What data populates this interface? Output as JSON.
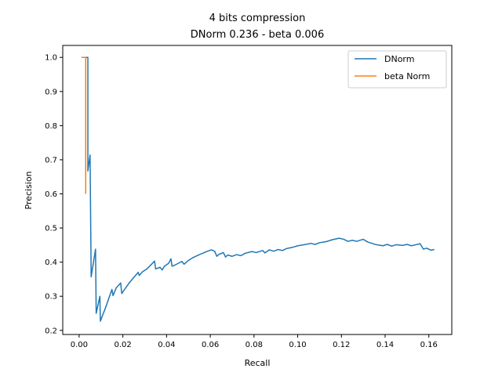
{
  "chart_data": {
    "type": "line",
    "title": [
      "4 bits compression",
      "DNorm 0.236 - beta 0.006"
    ],
    "xlabel": "Recall",
    "ylabel": "Precision",
    "xlim": [
      -0.0075,
      0.1705
    ],
    "ylim": [
      0.188,
      1.035
    ],
    "xticks": [
      0.0,
      0.02,
      0.04,
      0.06,
      0.08,
      0.1,
      0.12,
      0.14,
      0.16
    ],
    "yticks": [
      0.2,
      0.3,
      0.4,
      0.5,
      0.6,
      0.7,
      0.8,
      0.9,
      1.0
    ],
    "x_tick_labels": [
      "0.00",
      "0.02",
      "0.04",
      "0.06",
      "0.08",
      "0.10",
      "0.12",
      "0.14",
      "0.16"
    ],
    "y_tick_labels": [
      "0.2",
      "0.3",
      "0.4",
      "0.5",
      "0.6",
      "0.7",
      "0.8",
      "0.9",
      "1.0"
    ],
    "grid": false,
    "legend_position": "top-right",
    "series": [
      {
        "name": "DNorm",
        "color": "#1f77b4",
        "points": [
          [
            0.003,
            1.0
          ],
          [
            0.004,
            1.0
          ],
          [
            0.004,
            0.667
          ],
          [
            0.005,
            0.714
          ],
          [
            0.0055,
            0.357
          ],
          [
            0.0075,
            0.438
          ],
          [
            0.0078,
            0.25
          ],
          [
            0.0095,
            0.3
          ],
          [
            0.0097,
            0.227
          ],
          [
            0.012,
            0.265
          ],
          [
            0.015,
            0.32
          ],
          [
            0.0155,
            0.302
          ],
          [
            0.017,
            0.325
          ],
          [
            0.019,
            0.339
          ],
          [
            0.0195,
            0.308
          ],
          [
            0.021,
            0.322
          ],
          [
            0.023,
            0.34
          ],
          [
            0.025,
            0.355
          ],
          [
            0.027,
            0.37
          ],
          [
            0.0275,
            0.361
          ],
          [
            0.029,
            0.372
          ],
          [
            0.031,
            0.38
          ],
          [
            0.033,
            0.393
          ],
          [
            0.0345,
            0.403
          ],
          [
            0.035,
            0.38
          ],
          [
            0.037,
            0.385
          ],
          [
            0.038,
            0.377
          ],
          [
            0.039,
            0.388
          ],
          [
            0.041,
            0.397
          ],
          [
            0.042,
            0.41
          ],
          [
            0.0425,
            0.388
          ],
          [
            0.044,
            0.392
          ],
          [
            0.047,
            0.402
          ],
          [
            0.048,
            0.394
          ],
          [
            0.05,
            0.405
          ],
          [
            0.052,
            0.413
          ],
          [
            0.055,
            0.422
          ],
          [
            0.058,
            0.43
          ],
          [
            0.0605,
            0.436
          ],
          [
            0.062,
            0.432
          ],
          [
            0.063,
            0.417
          ],
          [
            0.064,
            0.423
          ],
          [
            0.066,
            0.428
          ],
          [
            0.067,
            0.415
          ],
          [
            0.068,
            0.421
          ],
          [
            0.07,
            0.417
          ],
          [
            0.072,
            0.422
          ],
          [
            0.074,
            0.419
          ],
          [
            0.076,
            0.426
          ],
          [
            0.079,
            0.431
          ],
          [
            0.081,
            0.428
          ],
          [
            0.084,
            0.434
          ],
          [
            0.085,
            0.427
          ],
          [
            0.087,
            0.436
          ],
          [
            0.089,
            0.432
          ],
          [
            0.091,
            0.437
          ],
          [
            0.093,
            0.434
          ],
          [
            0.095,
            0.44
          ],
          [
            0.098,
            0.444
          ],
          [
            0.1,
            0.448
          ],
          [
            0.103,
            0.451
          ],
          [
            0.106,
            0.455
          ],
          [
            0.108,
            0.452
          ],
          [
            0.11,
            0.457
          ],
          [
            0.113,
            0.46
          ],
          [
            0.116,
            0.466
          ],
          [
            0.119,
            0.47
          ],
          [
            0.121,
            0.467
          ],
          [
            0.123,
            0.461
          ],
          [
            0.125,
            0.464
          ],
          [
            0.127,
            0.461
          ],
          [
            0.13,
            0.467
          ],
          [
            0.132,
            0.459
          ],
          [
            0.134,
            0.455
          ],
          [
            0.136,
            0.451
          ],
          [
            0.139,
            0.448
          ],
          [
            0.141,
            0.452
          ],
          [
            0.143,
            0.447
          ],
          [
            0.145,
            0.451
          ],
          [
            0.148,
            0.449
          ],
          [
            0.15,
            0.452
          ],
          [
            0.152,
            0.448
          ],
          [
            0.154,
            0.451
          ],
          [
            0.156,
            0.454
          ],
          [
            0.1575,
            0.438
          ],
          [
            0.159,
            0.441
          ],
          [
            0.161,
            0.435
          ],
          [
            0.1625,
            0.437
          ]
        ]
      },
      {
        "name": "beta Norm",
        "color": "#ff7f0e",
        "points": [
          [
            0.001,
            1.0
          ],
          [
            0.002,
            1.0
          ],
          [
            0.003,
            1.0
          ],
          [
            0.003,
            0.6
          ]
        ]
      }
    ]
  }
}
